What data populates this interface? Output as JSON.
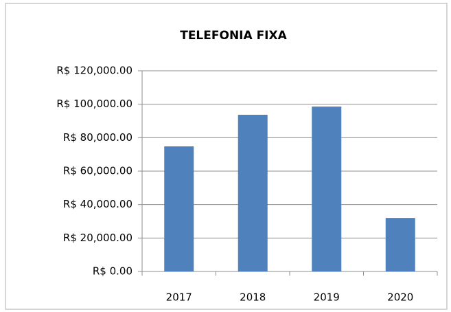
{
  "chart_data": {
    "type": "bar",
    "title": "TELEFONIA FIXA",
    "categories": [
      "2017",
      "2018",
      "2019",
      "2020"
    ],
    "values": [
      74800,
      93700,
      98600,
      32000
    ],
    "color": "#4f81bd",
    "ylim": [
      0,
      120000
    ],
    "yticks": [
      {
        "value": 0,
        "label": "R$ 0.00"
      },
      {
        "value": 20000,
        "label": "R$ 20,000.00"
      },
      {
        "value": 40000,
        "label": "R$ 40,000.00"
      },
      {
        "value": 60000,
        "label": "R$ 60,000.00"
      },
      {
        "value": 80000,
        "label": "R$ 80,000.00"
      },
      {
        "value": 100000,
        "label": "R$ 100,000.00"
      },
      {
        "value": 120000,
        "label": "R$ 120,000.00"
      }
    ],
    "grid": true
  }
}
